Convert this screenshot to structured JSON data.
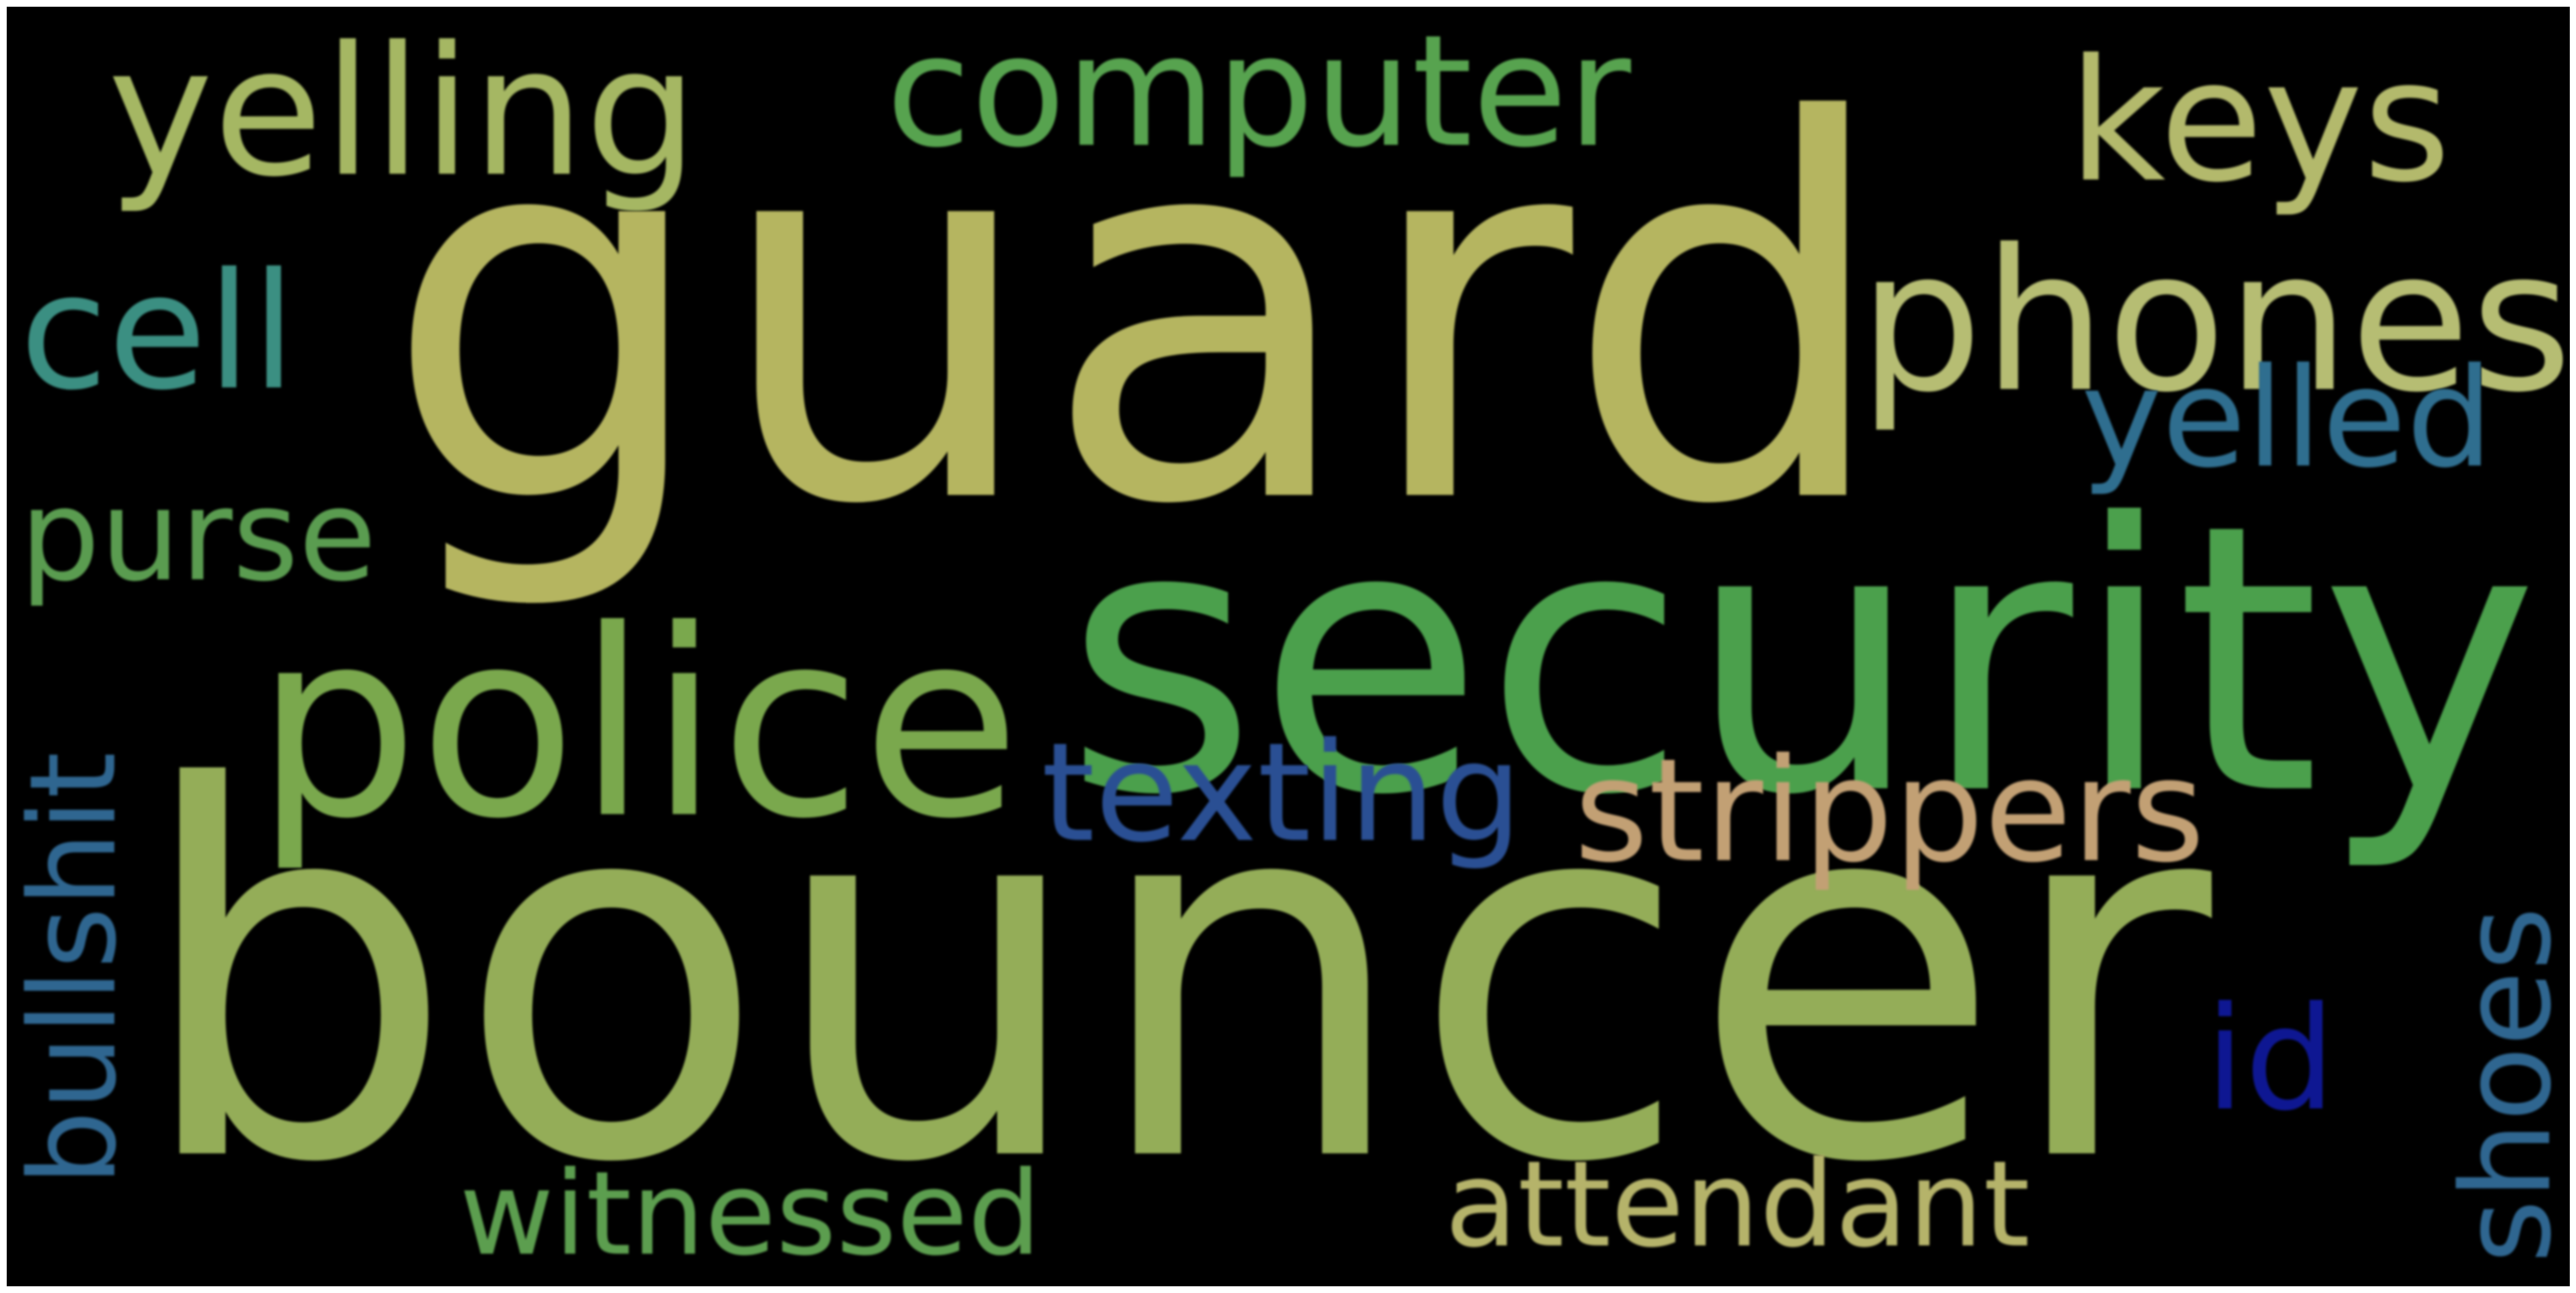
{
  "background_color": "#000000",
  "words": [
    {
      "key": "guard",
      "text": "guard",
      "color": "#b5b560",
      "orientation": "horizontal"
    },
    {
      "key": "bouncer",
      "text": "bouncer",
      "color": "#94ad58",
      "orientation": "horizontal"
    },
    {
      "key": "security",
      "text": "security",
      "color": "#4ba04c",
      "orientation": "horizontal"
    },
    {
      "key": "police",
      "text": "police",
      "color": "#7aa84d",
      "orientation": "horizontal"
    },
    {
      "key": "phones",
      "text": "phones",
      "color": "#b6bd73",
      "orientation": "horizontal"
    },
    {
      "key": "computer",
      "text": "computer",
      "color": "#57a34f",
      "orientation": "horizontal"
    },
    {
      "key": "yelling",
      "text": "yelling",
      "color": "#a5b763",
      "orientation": "horizontal"
    },
    {
      "key": "keys",
      "text": "keys",
      "color": "#b3b96c",
      "orientation": "horizontal"
    },
    {
      "key": "cell",
      "text": "cell",
      "color": "#3b8f82",
      "orientation": "horizontal"
    },
    {
      "key": "yelled",
      "text": "yelled",
      "color": "#2f6e8f",
      "orientation": "horizontal"
    },
    {
      "key": "purse",
      "text": "purse",
      "color": "#5a9c50",
      "orientation": "horizontal"
    },
    {
      "key": "texting",
      "text": "texting",
      "color": "#2a4f93",
      "orientation": "horizontal"
    },
    {
      "key": "strippers",
      "text": "strippers",
      "color": "#c2a074",
      "orientation": "horizontal"
    },
    {
      "key": "bullshit",
      "text": "bullshit",
      "color": "#2f6690",
      "orientation": "vertical"
    },
    {
      "key": "id",
      "text": "id",
      "color": "#0e1792",
      "orientation": "horizontal"
    },
    {
      "key": "shoes",
      "text": "shoes",
      "color": "#2f6690",
      "orientation": "vertical"
    },
    {
      "key": "witnessed",
      "text": "witnessed",
      "color": "#5c9e4f",
      "orientation": "horizontal"
    },
    {
      "key": "attendant",
      "text": "attendant",
      "color": "#b5b36a",
      "orientation": "horizontal"
    }
  ]
}
